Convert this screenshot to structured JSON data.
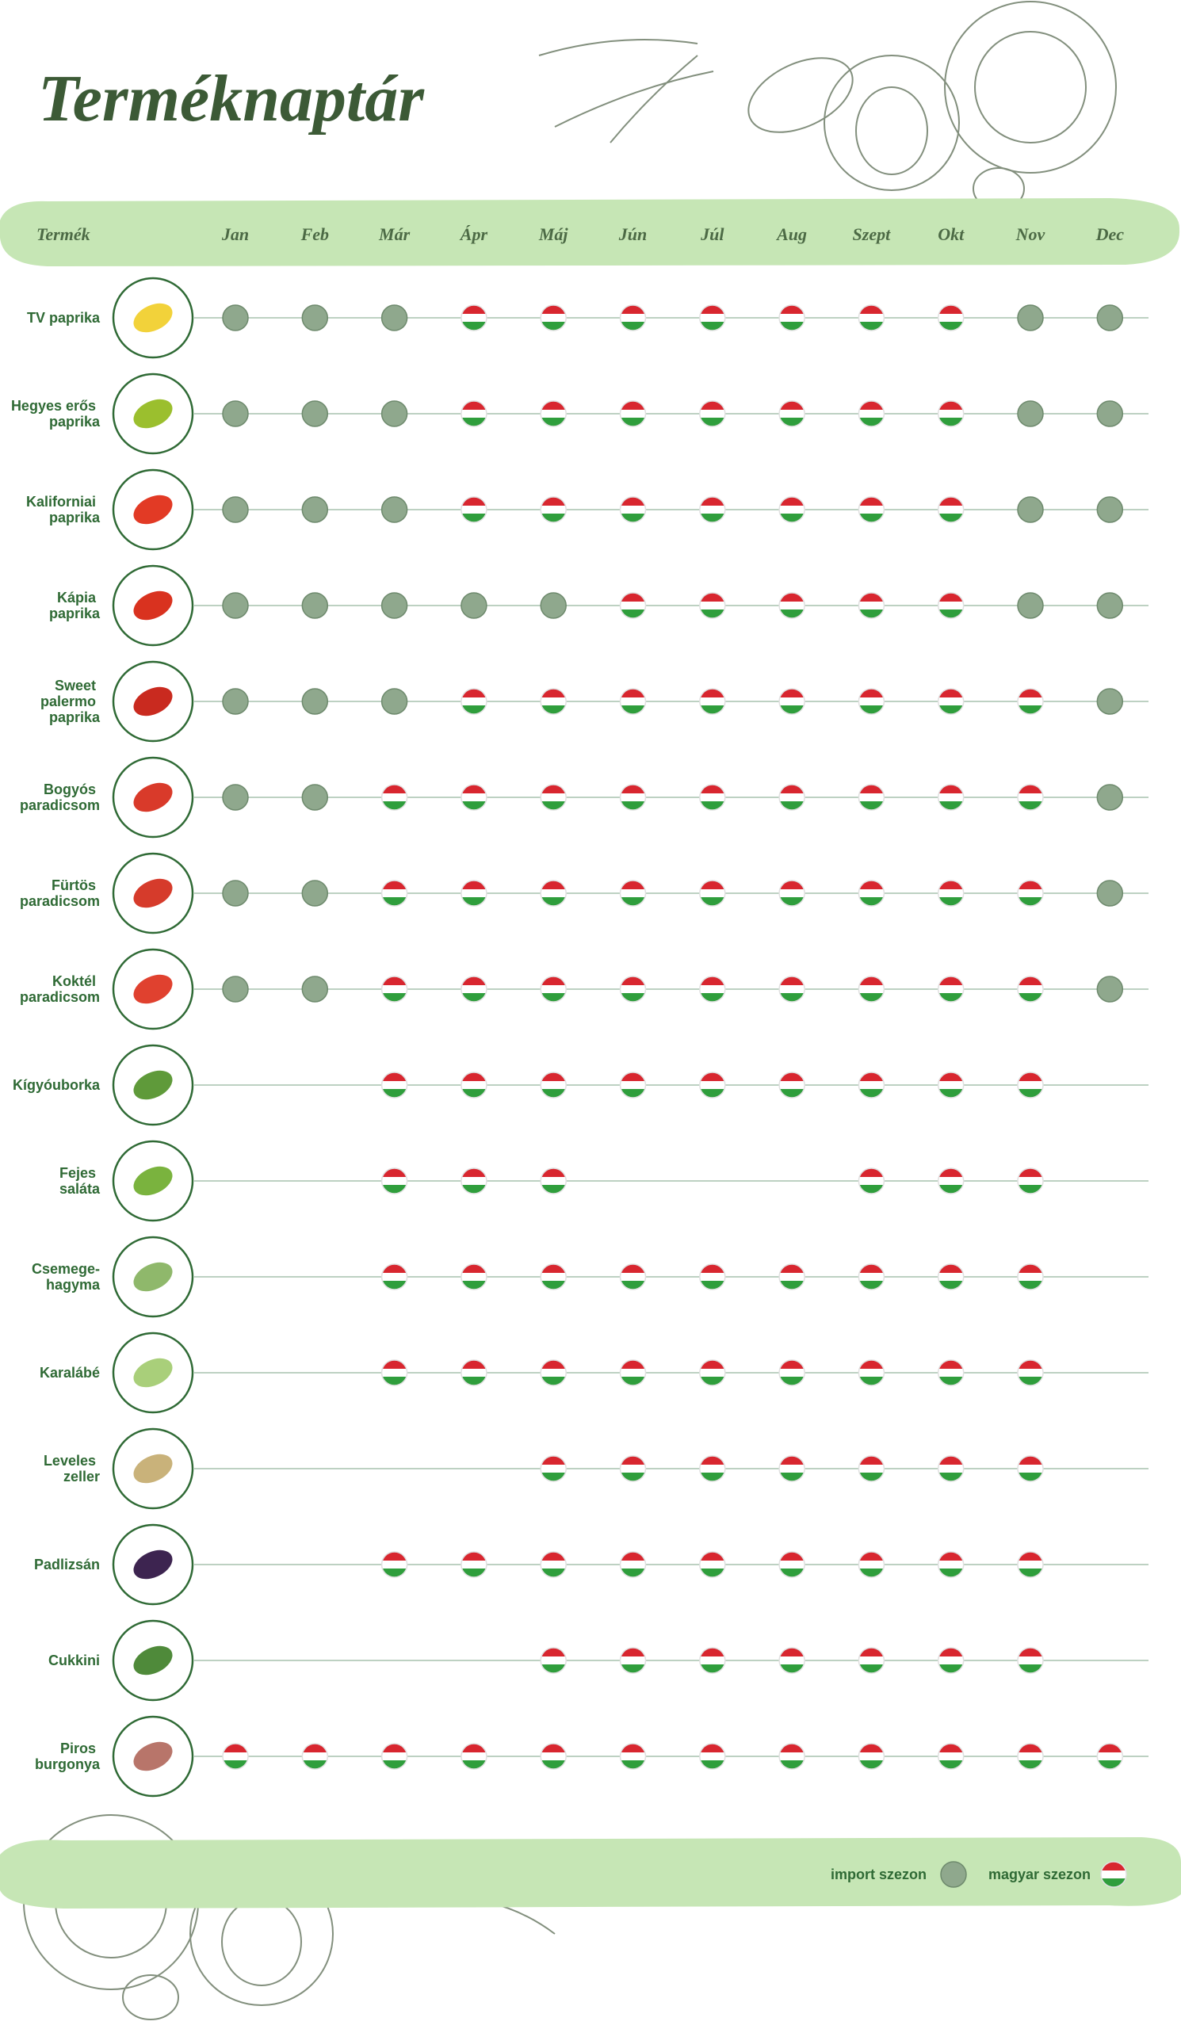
{
  "header": {
    "title": "Terméknaptár",
    "product_label": "Termék",
    "months": [
      "Jan",
      "Feb",
      "Már",
      "Ápr",
      "Máj",
      "Jún",
      "Júl",
      "Aug",
      "Szept",
      "Okt",
      "Nov",
      "Dec"
    ]
  },
  "rows": [
    {
      "name": "TV paprika",
      "season": [
        0,
        0,
        0,
        1,
        1,
        1,
        1,
        1,
        1,
        1,
        0,
        0
      ]
    },
    {
      "name": "Hegyes erős paprika",
      "season": [
        0,
        0,
        0,
        1,
        1,
        1,
        1,
        1,
        1,
        1,
        0,
        0
      ]
    },
    {
      "name": "Kaliforniai paprika",
      "season": [
        0,
        0,
        0,
        1,
        1,
        1,
        1,
        1,
        1,
        1,
        0,
        0
      ]
    },
    {
      "name": "Kápia paprika",
      "season": [
        0,
        0,
        0,
        0,
        0,
        1,
        1,
        1,
        1,
        1,
        0,
        0
      ]
    },
    {
      "name": "Sweet palermo paprika",
      "season": [
        0,
        0,
        0,
        1,
        1,
        1,
        1,
        1,
        1,
        1,
        1,
        0
      ]
    },
    {
      "name": "Bogyós paradicsom",
      "season": [
        0,
        0,
        1,
        1,
        1,
        1,
        1,
        1,
        1,
        1,
        1,
        0
      ]
    },
    {
      "name": "Fürtös paradicsom",
      "season": [
        0,
        0,
        1,
        1,
        1,
        1,
        1,
        1,
        1,
        1,
        1,
        0
      ]
    },
    {
      "name": "Koktél paradicsom",
      "season": [
        0,
        0,
        1,
        1,
        1,
        1,
        1,
        1,
        1,
        1,
        1,
        0
      ]
    },
    {
      "name": "Kígyóuborka",
      "season": [
        null,
        null,
        1,
        1,
        1,
        1,
        1,
        1,
        1,
        1,
        1,
        null
      ]
    },
    {
      "name": "Fejes saláta",
      "season": [
        null,
        null,
        1,
        1,
        1,
        null,
        null,
        null,
        1,
        1,
        1,
        null
      ]
    },
    {
      "name": "Csemege-hagyma",
      "season": [
        null,
        null,
        1,
        1,
        1,
        1,
        1,
        1,
        1,
        1,
        1,
        null
      ]
    },
    {
      "name": "Karalábé",
      "season": [
        null,
        null,
        1,
        1,
        1,
        1,
        1,
        1,
        1,
        1,
        1,
        null
      ]
    },
    {
      "name": "Leveles zeller",
      "season": [
        null,
        null,
        null,
        null,
        1,
        1,
        1,
        1,
        1,
        1,
        1,
        null
      ]
    },
    {
      "name": "Padlizsán",
      "season": [
        null,
        null,
        1,
        1,
        1,
        1,
        1,
        1,
        1,
        1,
        1,
        null
      ]
    },
    {
      "name": "Cukkini",
      "season": [
        null,
        null,
        null,
        null,
        1,
        1,
        1,
        1,
        1,
        1,
        1,
        null
      ]
    },
    {
      "name": "Piros burgonya",
      "season": [
        1,
        1,
        1,
        1,
        1,
        1,
        1,
        1,
        1,
        1,
        1,
        1
      ]
    }
  ],
  "legend": [
    {
      "label": "import szezon"
    },
    {
      "label": "magyar szezon"
    }
  ]
}
